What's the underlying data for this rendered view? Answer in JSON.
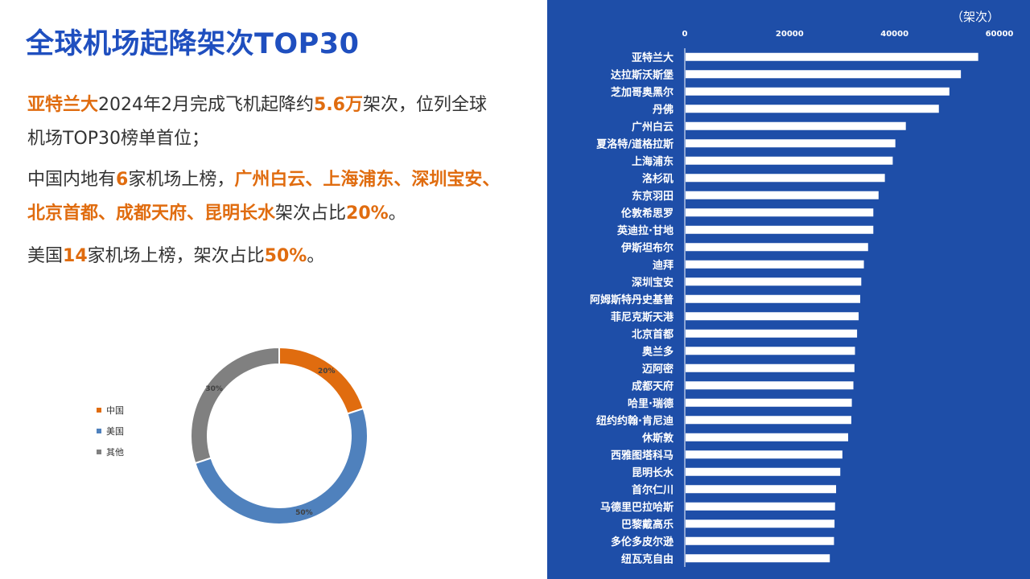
{
  "title": "全球机场起降架次TOP30",
  "para1": {
    "hl1": "亚特兰大",
    "t1": "2024年2月完成飞机起降约",
    "hl2": "5.6万",
    "t2": "架次，位列全球机场TOP30榜单首位；"
  },
  "para2": {
    "t1": "中国内地有",
    "hl1": "6",
    "t2": "家机场上榜，",
    "hl2": "广州白云、上海浦东、深圳宝安、北京首都、成都天府、昆明长水",
    "t3": "架次占比",
    "hl3": "20%",
    "t4": "。"
  },
  "para3": {
    "t1": "美国",
    "hl1": "14",
    "t2": "家机场上榜，架次占比",
    "hl2": "50%",
    "t3": "。"
  },
  "colors": {
    "title": "#1f4fbf",
    "highlight": "#e06c0f",
    "panel": "#1e4ea8",
    "bar": "#ffffff",
    "china": "#e06c0f",
    "usa": "#4f81bd",
    "other": "#808080"
  },
  "chart_data": [
    {
      "type": "pie",
      "variant": "donut",
      "legend_position": "left",
      "labels": [
        "中国",
        "美国",
        "其他"
      ],
      "values": [
        20,
        50,
        30
      ],
      "value_labels": [
        "20%",
        "50%",
        "30%"
      ],
      "colors": [
        "#e06c0f",
        "#4f81bd",
        "#808080"
      ]
    },
    {
      "type": "bar",
      "orientation": "horizontal",
      "unit": "（架次）",
      "axis_ticks": [
        0,
        20000,
        40000,
        60000
      ],
      "xlim": [
        0,
        60000
      ],
      "grid": false,
      "categories": [
        "亚特兰大",
        "达拉斯沃斯堡",
        "芝加哥奥黑尔",
        "丹佛",
        "广州白云",
        "夏洛特/道格拉斯",
        "上海浦东",
        "洛杉矶",
        "东京羽田",
        "伦敦希思罗",
        "英迪拉·甘地",
        "伊斯坦布尔",
        "迪拜",
        "深圳宝安",
        "阿姆斯特丹史基普",
        "菲尼克斯天港",
        "北京首都",
        "奥兰多",
        "迈阿密",
        "成都天府",
        "哈里·瑞德",
        "纽约约翰·肯尼迪",
        "休斯敦",
        "西雅图塔科马",
        "昆明长水",
        "首尔仁川",
        "马德里巴拉哈斯",
        "巴黎戴高乐",
        "多伦多皮尔逊",
        "纽瓦克自由"
      ],
      "values": [
        55800,
        52500,
        50300,
        48300,
        42000,
        40000,
        39500,
        38000,
        36800,
        35800,
        35800,
        34800,
        34000,
        33500,
        33300,
        33000,
        32700,
        32300,
        32200,
        32000,
        31700,
        31600,
        31000,
        29900,
        29500,
        28700,
        28500,
        28400,
        28300,
        27500
      ]
    }
  ]
}
